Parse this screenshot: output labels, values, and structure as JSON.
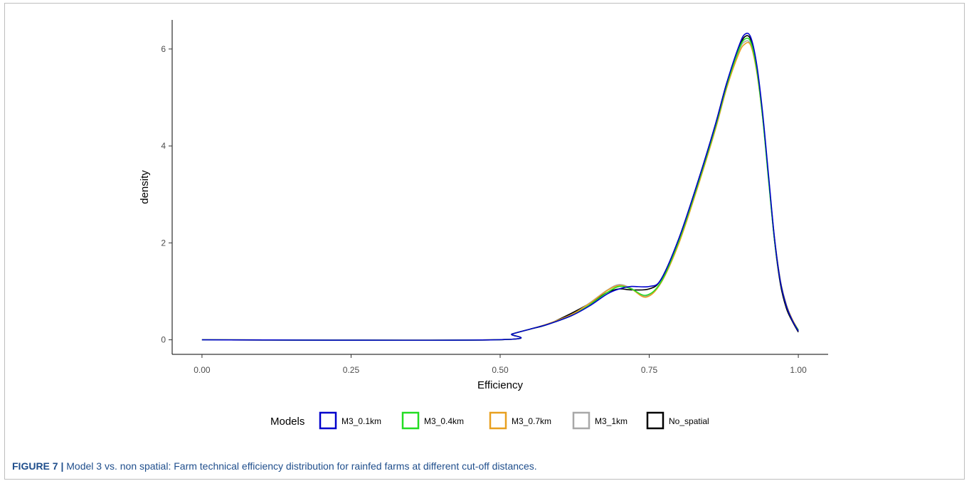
{
  "caption": {
    "label": "FIGURE 7 |",
    "text": "Model 3 vs. non spatial: Farm technical efficiency distribution for rainfed farms at different cut-off distances."
  },
  "chart_data": {
    "type": "line",
    "title": "",
    "xlabel": "Efficiency",
    "ylabel": "density",
    "xlim": [
      -0.05,
      1.05
    ],
    "ylim": [
      -0.3,
      6.6
    ],
    "xticks": [
      0.0,
      0.25,
      0.5,
      0.75,
      1.0
    ],
    "xtick_labels": [
      "0.00",
      "0.25",
      "0.50",
      "0.75",
      "1.00"
    ],
    "yticks": [
      0,
      2,
      4,
      6
    ],
    "ytick_labels": [
      "0",
      "2",
      "4",
      "6"
    ],
    "grid": false,
    "legend": {
      "title": "Models",
      "placement": "bottom"
    },
    "series": [
      {
        "name": "M3_0.1km",
        "color": "#0000cc",
        "points": [
          [
            0,
            0
          ],
          [
            0.49,
            0
          ],
          [
            0.52,
            0.12
          ],
          [
            0.55,
            0.22
          ],
          [
            0.58,
            0.32
          ],
          [
            0.62,
            0.5
          ],
          [
            0.65,
            0.7
          ],
          [
            0.68,
            0.95
          ],
          [
            0.7,
            1.05
          ],
          [
            0.72,
            1.1
          ],
          [
            0.75,
            1.1
          ],
          [
            0.77,
            1.25
          ],
          [
            0.8,
            2.1
          ],
          [
            0.83,
            3.2
          ],
          [
            0.86,
            4.4
          ],
          [
            0.88,
            5.3
          ],
          [
            0.9,
            6.05
          ],
          [
            0.91,
            6.3
          ],
          [
            0.92,
            6.25
          ],
          [
            0.93,
            5.7
          ],
          [
            0.94,
            4.7
          ],
          [
            0.95,
            3.4
          ],
          [
            0.96,
            2.1
          ],
          [
            0.97,
            1.2
          ],
          [
            0.98,
            0.7
          ],
          [
            0.99,
            0.4
          ],
          [
            1.0,
            0.18
          ]
        ]
      },
      {
        "name": "M3_0.4km",
        "color": "#22dd22",
        "points": [
          [
            0,
            0
          ],
          [
            0.49,
            0
          ],
          [
            0.52,
            0.12
          ],
          [
            0.55,
            0.22
          ],
          [
            0.58,
            0.32
          ],
          [
            0.62,
            0.5
          ],
          [
            0.65,
            0.72
          ],
          [
            0.68,
            0.98
          ],
          [
            0.7,
            1.1
          ],
          [
            0.72,
            1.05
          ],
          [
            0.745,
            0.92
          ],
          [
            0.77,
            1.2
          ],
          [
            0.8,
            2.05
          ],
          [
            0.83,
            3.15
          ],
          [
            0.86,
            4.35
          ],
          [
            0.88,
            5.25
          ],
          [
            0.9,
            5.98
          ],
          [
            0.91,
            6.2
          ],
          [
            0.92,
            6.15
          ],
          [
            0.93,
            5.6
          ],
          [
            0.94,
            4.6
          ],
          [
            0.95,
            3.3
          ],
          [
            0.96,
            2.05
          ],
          [
            0.97,
            1.2
          ],
          [
            0.98,
            0.7
          ],
          [
            0.99,
            0.4
          ],
          [
            1.0,
            0.2
          ]
        ]
      },
      {
        "name": "M3_0.7km",
        "color": "#e8a020",
        "points": [
          [
            0,
            0
          ],
          [
            0.49,
            0
          ],
          [
            0.52,
            0.12
          ],
          [
            0.55,
            0.22
          ],
          [
            0.58,
            0.33
          ],
          [
            0.62,
            0.52
          ],
          [
            0.65,
            0.75
          ],
          [
            0.68,
            1.02
          ],
          [
            0.7,
            1.12
          ],
          [
            0.72,
            1.05
          ],
          [
            0.745,
            0.88
          ],
          [
            0.77,
            1.18
          ],
          [
            0.8,
            2.0
          ],
          [
            0.83,
            3.1
          ],
          [
            0.86,
            4.3
          ],
          [
            0.88,
            5.2
          ],
          [
            0.9,
            5.9
          ],
          [
            0.91,
            6.1
          ],
          [
            0.92,
            6.08
          ],
          [
            0.93,
            5.55
          ],
          [
            0.94,
            4.6
          ],
          [
            0.95,
            3.35
          ],
          [
            0.96,
            2.1
          ],
          [
            0.97,
            1.22
          ],
          [
            0.98,
            0.72
          ],
          [
            0.99,
            0.42
          ],
          [
            1.0,
            0.2
          ]
        ]
      },
      {
        "name": "M3_1km",
        "color": "#a8a8a8",
        "points": [
          [
            0,
            0
          ],
          [
            0.49,
            0
          ],
          [
            0.52,
            0.12
          ],
          [
            0.55,
            0.22
          ],
          [
            0.58,
            0.33
          ],
          [
            0.62,
            0.52
          ],
          [
            0.65,
            0.76
          ],
          [
            0.68,
            1.03
          ],
          [
            0.7,
            1.14
          ],
          [
            0.72,
            1.06
          ],
          [
            0.745,
            0.9
          ],
          [
            0.77,
            1.2
          ],
          [
            0.8,
            2.02
          ],
          [
            0.83,
            3.12
          ],
          [
            0.86,
            4.3
          ],
          [
            0.88,
            5.2
          ],
          [
            0.9,
            5.95
          ],
          [
            0.91,
            6.15
          ],
          [
            0.92,
            6.1
          ],
          [
            0.93,
            5.58
          ],
          [
            0.94,
            4.62
          ],
          [
            0.95,
            3.35
          ],
          [
            0.96,
            2.1
          ],
          [
            0.97,
            1.22
          ],
          [
            0.98,
            0.72
          ],
          [
            0.99,
            0.42
          ],
          [
            1.0,
            0.2
          ]
        ]
      },
      {
        "name": "No_spatial",
        "color": "#000000",
        "points": [
          [
            0,
            0
          ],
          [
            0.49,
            0
          ],
          [
            0.52,
            0.12
          ],
          [
            0.55,
            0.22
          ],
          [
            0.58,
            0.32
          ],
          [
            0.62,
            0.55
          ],
          [
            0.65,
            0.75
          ],
          [
            0.68,
            0.98
          ],
          [
            0.7,
            1.05
          ],
          [
            0.72,
            1.03
          ],
          [
            0.75,
            1.05
          ],
          [
            0.77,
            1.25
          ],
          [
            0.8,
            2.1
          ],
          [
            0.83,
            3.2
          ],
          [
            0.86,
            4.4
          ],
          [
            0.88,
            5.3
          ],
          [
            0.9,
            6.0
          ],
          [
            0.91,
            6.25
          ],
          [
            0.92,
            6.2
          ],
          [
            0.93,
            5.65
          ],
          [
            0.94,
            4.65
          ],
          [
            0.95,
            3.35
          ],
          [
            0.96,
            2.05
          ],
          [
            0.97,
            1.15
          ],
          [
            0.98,
            0.65
          ],
          [
            0.99,
            0.38
          ],
          [
            1.0,
            0.16
          ]
        ]
      }
    ]
  }
}
